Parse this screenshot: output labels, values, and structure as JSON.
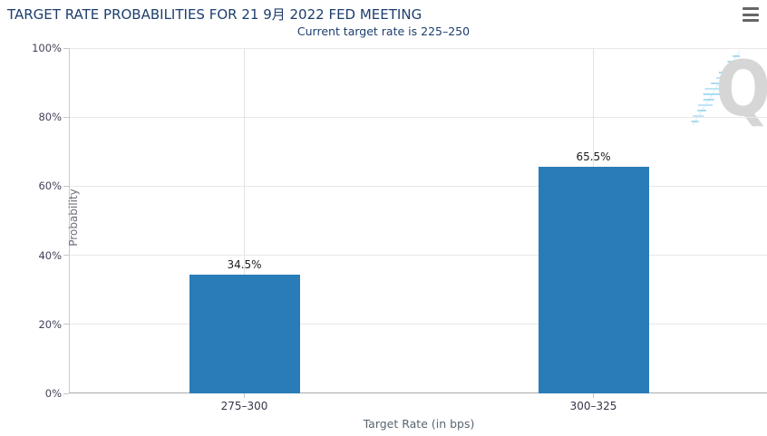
{
  "header": {
    "menu_tooltip": "menu"
  },
  "colors": {
    "title": "#1d3e6d",
    "bar": "#2a7cb8",
    "grid": "#e8e8e8",
    "menu_icon": "#666666",
    "watermark_gray": "#d6d6d6",
    "watermark_blue": "#aadcf2"
  },
  "icons": {
    "menu": "hamburger-menu-icon",
    "watermark": "q-logo-watermark"
  },
  "chart_data": {
    "type": "bar",
    "title": "TARGET RATE PROBABILITIES FOR 21 9月 2022 FED MEETING",
    "subtitle": "Current target rate is 225–250",
    "categories": [
      "275–300",
      "300–325"
    ],
    "values": [
      34.5,
      65.5
    ],
    "value_labels": [
      "34.5%",
      "65.5%"
    ],
    "xlabel": "Target Rate (in bps)",
    "ylabel": "Probability",
    "ylim": [
      0,
      100
    ],
    "yticks": [
      0,
      20,
      40,
      60,
      80,
      100
    ],
    "ytick_labels": [
      "0%",
      "20%",
      "40%",
      "60%",
      "80%",
      "100%"
    ],
    "grid": true,
    "legend": false,
    "bar_color": "#2a7cb8"
  }
}
